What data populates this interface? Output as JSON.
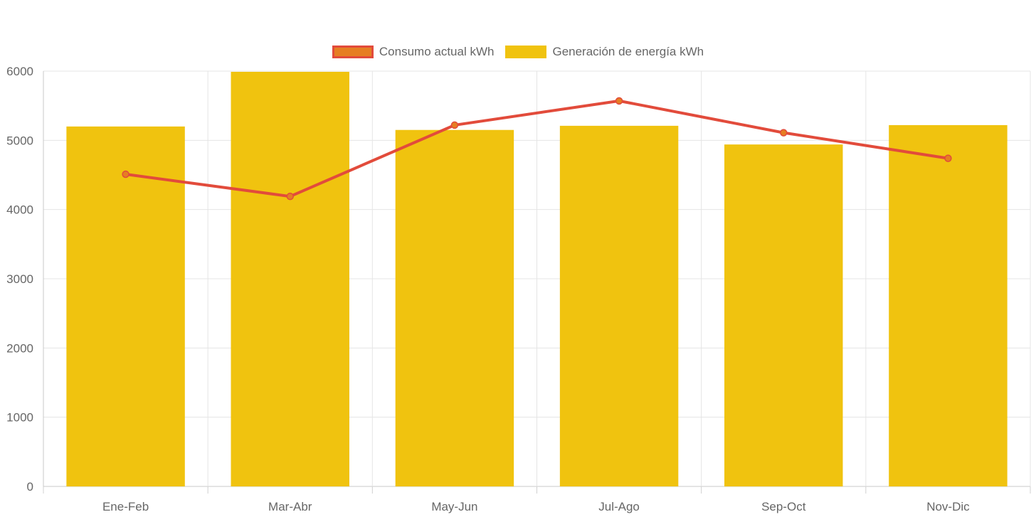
{
  "chart_data": {
    "type": "bar",
    "categories": [
      "Ene-Feb",
      "Mar-Abr",
      "May-Jun",
      "Jul-Ago",
      "Sep-Oct",
      "Nov-Dic"
    ],
    "series": [
      {
        "name": "Consumo actual kWh",
        "type": "line",
        "color": "#e24b3b",
        "fill": "#e67e22",
        "values": [
          4510,
          4190,
          5220,
          5570,
          5110,
          4740
        ]
      },
      {
        "name": "Generación de energía kWh",
        "type": "bar",
        "color": "#f0c30f",
        "values": [
          5200,
          5990,
          5150,
          5210,
          4940,
          5220
        ]
      }
    ],
    "yticks": [
      "0",
      "1000",
      "2000",
      "3000",
      "4000",
      "5000",
      "6000"
    ],
    "ylim": [
      0,
      6000
    ],
    "grid": true,
    "legend_position": "top"
  }
}
